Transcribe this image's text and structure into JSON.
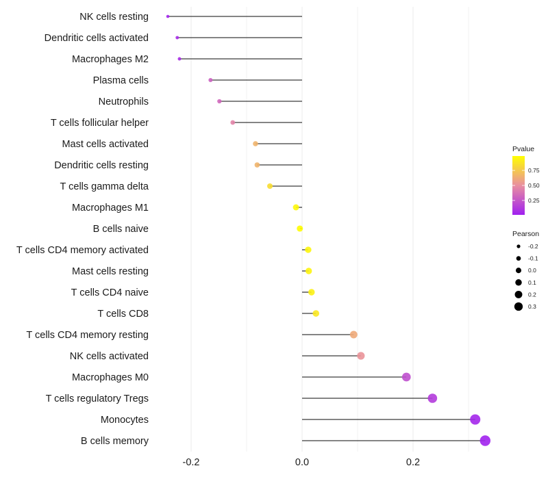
{
  "chart_data": {
    "type": "lollipop",
    "title": "",
    "xlabel": "",
    "ylabel": "",
    "xlim": [
      -0.27,
      0.345
    ],
    "x_ticks": [
      -0.2,
      0.0,
      0.2
    ],
    "x_tick_labels": [
      "-0.2",
      "0.0",
      "0.2"
    ],
    "x_minor_gridlines": [
      -0.1,
      0.1,
      0.3
    ],
    "grid": true,
    "categories": [
      "NK cells resting",
      "Dendritic cells activated",
      "Macrophages M2",
      "Plasma cells",
      "Neutrophils",
      "T cells follicular helper",
      "Mast cells activated",
      "Dendritic cells resting",
      "T cells gamma delta",
      "Macrophages M1",
      "B cells naive",
      "T cells CD4 memory activated",
      "Mast cells resting",
      "T cells CD4 naive",
      "T cells CD8",
      "T cells CD4 memory resting",
      "NK cells activated",
      "Macrophages M0",
      "T cells regulatory  Tregs ",
      "Monocytes",
      "B cells memory"
    ],
    "pearson": [
      -0.242,
      -0.225,
      -0.221,
      -0.165,
      -0.149,
      -0.125,
      -0.084,
      -0.081,
      -0.058,
      -0.011,
      -0.004,
      0.011,
      0.012,
      0.017,
      0.025,
      0.093,
      0.106,
      0.188,
      0.235,
      0.312,
      0.33
    ],
    "pvalue": [
      0.03,
      0.06,
      0.07,
      0.3,
      0.33,
      0.45,
      0.66,
      0.66,
      0.84,
      0.96,
      0.98,
      0.95,
      0.94,
      0.93,
      0.89,
      0.62,
      0.52,
      0.22,
      0.13,
      0.04,
      0.02
    ],
    "legend_color": {
      "title": "Pvalue",
      "ticks": [
        0.25,
        0.5,
        0.75
      ],
      "tick_labels": [
        "0.25",
        "0.50",
        "0.75"
      ],
      "range": [
        0.01,
        0.99
      ],
      "colors": [
        "#a020f0",
        "#e98fa0",
        "#ffff00"
      ],
      "placement": "right"
    },
    "legend_size": {
      "title": "Pearson",
      "values": [
        -0.2,
        -0.1,
        0.0,
        0.1,
        0.2,
        0.3
      ],
      "labels": [
        "-0.2",
        "-0.1",
        "0.0",
        "0.1",
        "0.2",
        "0.3"
      ],
      "placement": "right"
    }
  }
}
